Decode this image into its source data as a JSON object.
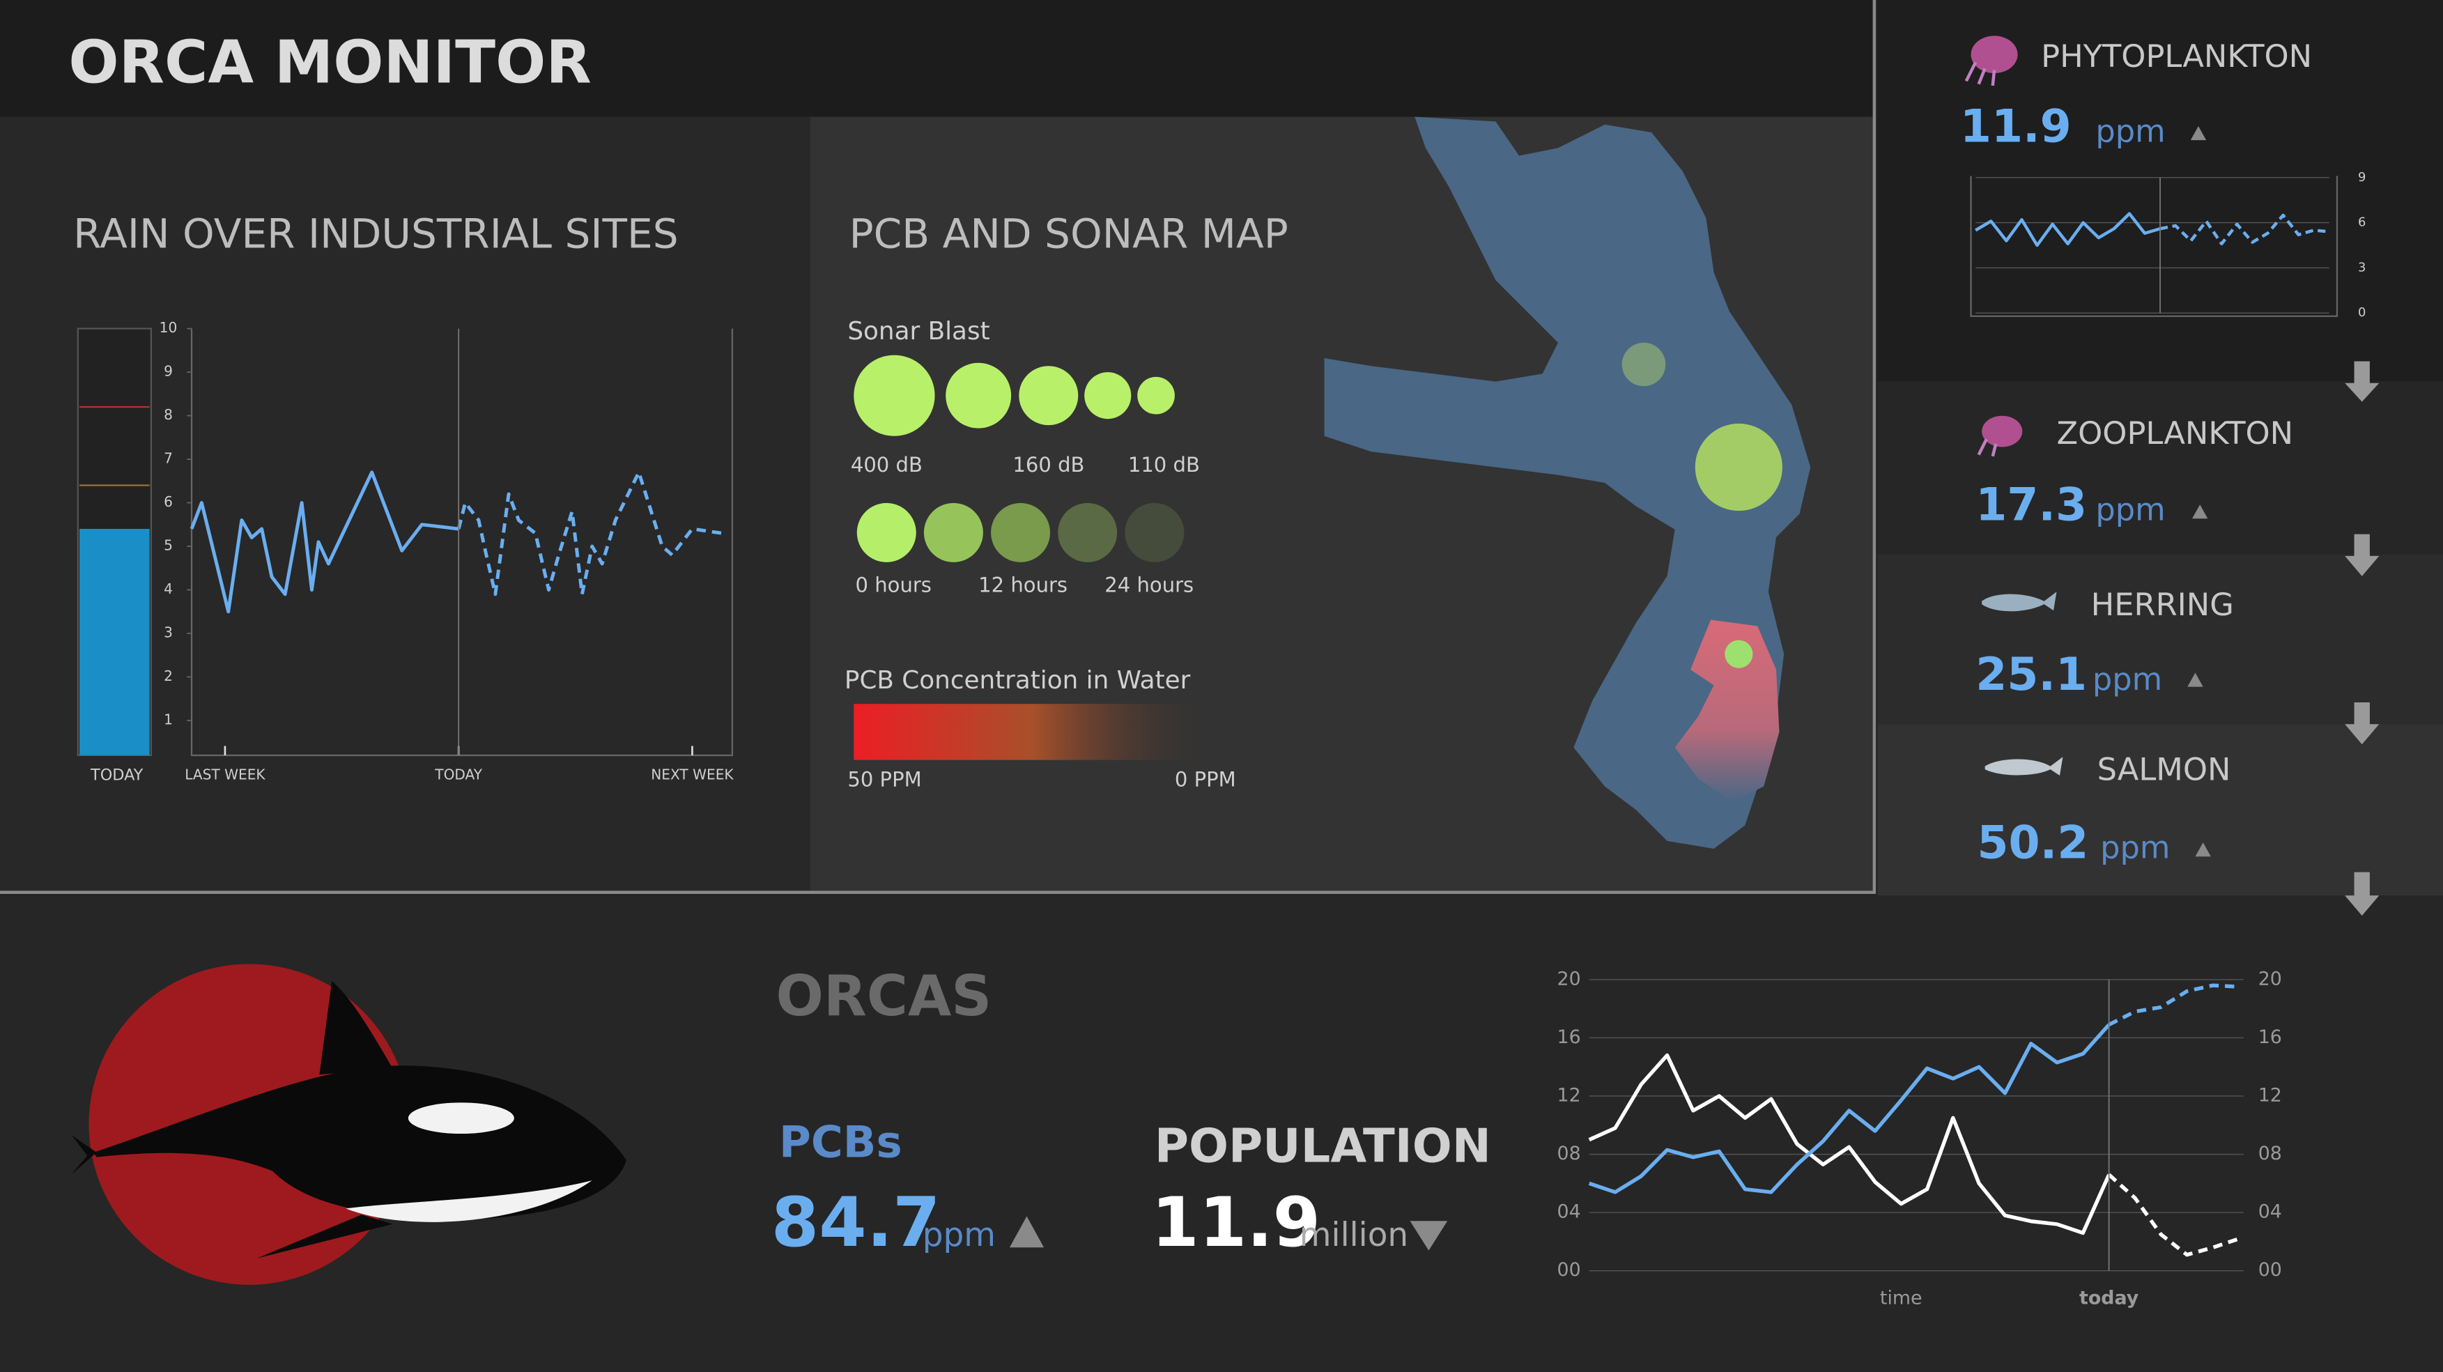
{
  "title": "ORCA MONITOR",
  "chart_data": [
    {
      "type": "line",
      "title": "RAIN OVER INDUSTRIAL SITES",
      "xlim": [
        -8,
        8.2
      ],
      "xticks": [
        {
          "value": -7,
          "label": "LAST WEEK"
        },
        {
          "value": 0,
          "label": "TODAY"
        },
        {
          "value": 7,
          "label": "NEXT WEEK"
        }
      ],
      "ylim": [
        0.2,
        10
      ],
      "yticks": [
        1,
        2,
        3,
        4,
        5,
        6,
        7,
        8,
        9,
        10
      ],
      "grid": false,
      "series": [
        {
          "color": "#6aaef0",
          "dashed": false,
          "x": [
            -8.0,
            -7.7,
            -6.9,
            -6.5,
            -6.2,
            -5.9,
            -5.6,
            -5.2,
            -4.7,
            -4.4,
            -4.2,
            -3.9,
            -2.6,
            -1.7,
            -1.1,
            0
          ],
          "values": [
            5.4,
            6.0,
            3.5,
            5.6,
            5.2,
            5.4,
            4.3,
            3.9,
            6.0,
            4.0,
            5.1,
            4.6,
            6.7,
            4.9,
            5.5,
            5.4
          ]
        },
        {
          "color": "#6aaef0",
          "dashed": true,
          "x": [
            0,
            0.2,
            0.6,
            0.8,
            1.1,
            1.5,
            1.8,
            2.3,
            2.7,
            3.0,
            3.4,
            3.7,
            4.0,
            4.3,
            4.7,
            5.4,
            6.1,
            6.4,
            7.0,
            7.9
          ],
          "values": [
            5.4,
            6.0,
            5.6,
            4.9,
            3.9,
            6.2,
            5.6,
            5.3,
            4.0,
            4.8,
            5.8,
            3.9,
            5.0,
            4.6,
            5.6,
            6.7,
            5.0,
            4.8,
            5.4,
            5.3
          ]
        }
      ],
      "gauge": {
        "label": "TODAY",
        "value": 5.4,
        "color": "#1a8fc7",
        "limits": [
          {
            "value": 8.2,
            "color": "#b83030"
          },
          {
            "value": 6.4,
            "color": "#9a7040"
          }
        ]
      }
    },
    {
      "type": "line",
      "categories": [
        null,
        null,
        null,
        null,
        null,
        null,
        null,
        null,
        null,
        null,
        null,
        null,
        null,
        null,
        null,
        null,
        null,
        null,
        null,
        null,
        null,
        null,
        null,
        null
      ],
      "ylim": [
        0,
        9
      ],
      "yticks": [
        0,
        3,
        6,
        9
      ],
      "grid": true,
      "series": [
        {
          "color": "#6aaef0",
          "dashed": false,
          "values": [
            5.5,
            6.1,
            4.8,
            6.2,
            4.5,
            5.9,
            4.6,
            6.0,
            5.0,
            5.6,
            6.6,
            5.3,
            5.6,
            null,
            null,
            null,
            null,
            null,
            null,
            null,
            null,
            null,
            null,
            null
          ]
        },
        {
          "color": "#6aaef0",
          "dashed": true,
          "values": [
            null,
            null,
            null,
            null,
            null,
            null,
            null,
            null,
            null,
            null,
            null,
            null,
            5.6,
            5.8,
            4.8,
            6.1,
            4.6,
            5.9,
            4.7,
            5.3,
            6.5,
            5.2,
            5.5,
            5.4
          ]
        }
      ]
    },
    {
      "type": "line",
      "categories": [
        null,
        null,
        null,
        null,
        null,
        null,
        null,
        null,
        null,
        null,
        null,
        null,
        "time",
        null,
        null,
        null,
        null,
        null,
        null,
        null,
        "today",
        null,
        null,
        null,
        null,
        null
      ],
      "ylim": [
        0,
        20
      ],
      "yticks": [
        {
          "value": 0,
          "label": "00"
        },
        {
          "value": 4,
          "label": "04"
        },
        {
          "value": 8,
          "label": "08"
        },
        {
          "value": 12,
          "label": "12"
        },
        {
          "value": 16,
          "label": "16"
        },
        {
          "value": 20,
          "label": "20"
        }
      ],
      "y2lim": [
        0,
        20
      ],
      "y2ticks": [
        {
          "value": 0,
          "label": "00"
        },
        {
          "value": 4,
          "label": "04"
        },
        {
          "value": 8,
          "label": "08"
        },
        {
          "value": 12,
          "label": "12"
        },
        {
          "value": 16,
          "label": "16"
        },
        {
          "value": 20,
          "label": "20"
        }
      ],
      "grid": true,
      "series": [
        {
          "color": "#ffffff",
          "dashed": false,
          "values": [
            9.0,
            9.8,
            12.8,
            14.8,
            11.0,
            12.0,
            10.5,
            11.8,
            8.7,
            7.3,
            8.5,
            6.1,
            4.6,
            5.6,
            10.5,
            6.0,
            3.8,
            3.4,
            3.2,
            2.6,
            6.6,
            null,
            null,
            null,
            null,
            null
          ]
        },
        {
          "color": "#ffffff",
          "dashed": true,
          "values": [
            null,
            null,
            null,
            null,
            null,
            null,
            null,
            null,
            null,
            null,
            null,
            null,
            null,
            null,
            null,
            null,
            null,
            null,
            null,
            null,
            6.6,
            5.0,
            2.5,
            1.1,
            1.6,
            2.2
          ]
        },
        {
          "color": "#6aaef0",
          "dashed": false,
          "values": [
            6.0,
            5.4,
            6.5,
            8.3,
            7.8,
            8.2,
            5.6,
            5.4,
            7.3,
            8.9,
            11.0,
            9.6,
            11.7,
            13.9,
            13.2,
            14.0,
            12.2,
            15.6,
            14.3,
            14.9,
            16.9,
            null,
            null,
            null,
            null,
            null
          ]
        },
        {
          "color": "#6aaef0",
          "dashed": true,
          "values": [
            null,
            null,
            null,
            null,
            null,
            null,
            null,
            null,
            null,
            null,
            null,
            null,
            null,
            null,
            null,
            null,
            null,
            null,
            null,
            null,
            16.9,
            17.8,
            18.1,
            19.2,
            19.6,
            19.5
          ]
        }
      ]
    }
  ],
  "map": {
    "title": "PCB AND SONAR MAP",
    "sonar_title": "Sonar Blast",
    "sonar_labels": [
      "400 dB",
      "160 dB",
      "110 dB"
    ],
    "age_labels": [
      "0 hours",
      "12 hours",
      "24 hours"
    ],
    "pcb_title": "PCB Concentration in Water",
    "pcb_labels": [
      "50 PPM",
      "0 PPM"
    ]
  },
  "species": [
    {
      "name": "PHYTOPLANKTON",
      "value": 11.9,
      "unit": "ppm"
    },
    {
      "name": "ZOOPLANKTON",
      "value": 17.3,
      "unit": "ppm"
    },
    {
      "name": "HERRING",
      "value": 25.1,
      "unit": "ppm"
    },
    {
      "name": "SALMON",
      "value": 50.2,
      "unit": "ppm"
    }
  ],
  "orcas": {
    "title": "ORCAS",
    "pcb_label": "PCBs",
    "pcb_value": 84.7,
    "pcb_unit": "ppm",
    "population_label": "POPULATION",
    "population_value": 11.9,
    "population_unit": "million"
  }
}
